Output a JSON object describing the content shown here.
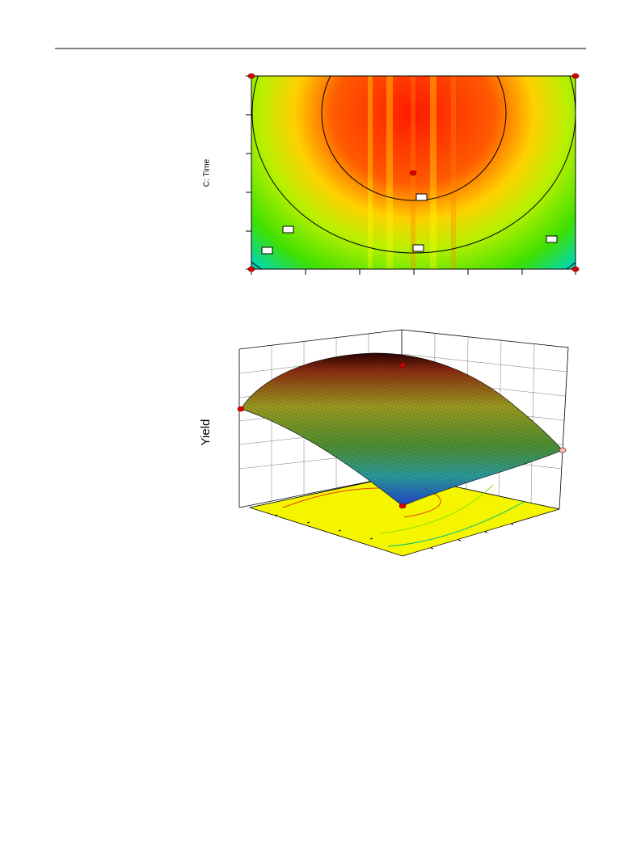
{
  "contour_plot": {
    "y_axis_label": "C: Time"
  },
  "surface_plot": {
    "z_axis_label": "Yield"
  }
}
